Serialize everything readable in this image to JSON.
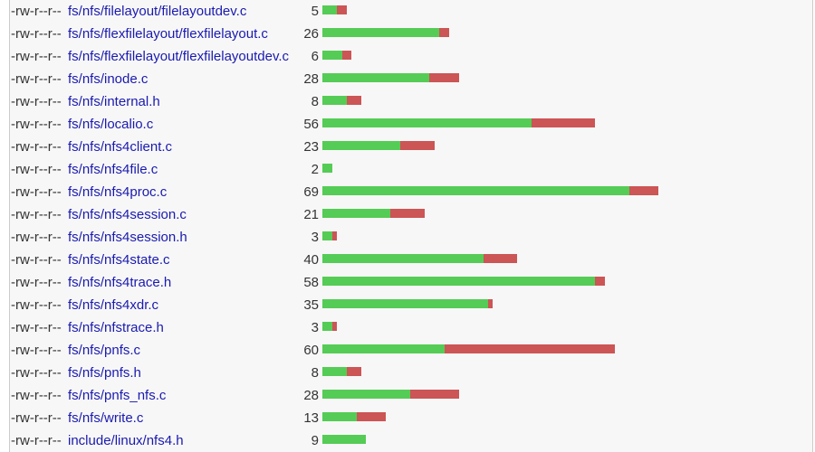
{
  "files": [
    {
      "mode": "-rw-r--r--",
      "name": "fs/nfs/filelayout/filelayoutdev.c",
      "changes": 5,
      "insertions": 3,
      "deletions": 2
    },
    {
      "mode": "-rw-r--r--",
      "name": "fs/nfs/flexfilelayout/flexfilelayout.c",
      "changes": 26,
      "insertions": 24,
      "deletions": 2
    },
    {
      "mode": "-rw-r--r--",
      "name": "fs/nfs/flexfilelayout/flexfilelayoutdev.c",
      "changes": 6,
      "insertions": 4,
      "deletions": 2
    },
    {
      "mode": "-rw-r--r--",
      "name": "fs/nfs/inode.c",
      "changes": 28,
      "insertions": 22,
      "deletions": 6
    },
    {
      "mode": "-rw-r--r--",
      "name": "fs/nfs/internal.h",
      "changes": 8,
      "insertions": 5,
      "deletions": 3
    },
    {
      "mode": "-rw-r--r--",
      "name": "fs/nfs/localio.c",
      "changes": 56,
      "insertions": 43,
      "deletions": 13
    },
    {
      "mode": "-rw-r--r--",
      "name": "fs/nfs/nfs4client.c",
      "changes": 23,
      "insertions": 16,
      "deletions": 7
    },
    {
      "mode": "-rw-r--r--",
      "name": "fs/nfs/nfs4file.c",
      "changes": 2,
      "insertions": 2,
      "deletions": 0
    },
    {
      "mode": "-rw-r--r--",
      "name": "fs/nfs/nfs4proc.c",
      "changes": 69,
      "insertions": 63,
      "deletions": 6
    },
    {
      "mode": "-rw-r--r--",
      "name": "fs/nfs/nfs4session.c",
      "changes": 21,
      "insertions": 14,
      "deletions": 7
    },
    {
      "mode": "-rw-r--r--",
      "name": "fs/nfs/nfs4session.h",
      "changes": 3,
      "insertions": 2,
      "deletions": 1
    },
    {
      "mode": "-rw-r--r--",
      "name": "fs/nfs/nfs4state.c",
      "changes": 40,
      "insertions": 33,
      "deletions": 7
    },
    {
      "mode": "-rw-r--r--",
      "name": "fs/nfs/nfs4trace.h",
      "changes": 58,
      "insertions": 56,
      "deletions": 2
    },
    {
      "mode": "-rw-r--r--",
      "name": "fs/nfs/nfs4xdr.c",
      "changes": 35,
      "insertions": 34,
      "deletions": 1
    },
    {
      "mode": "-rw-r--r--",
      "name": "fs/nfs/nfstrace.h",
      "changes": 3,
      "insertions": 2,
      "deletions": 1
    },
    {
      "mode": "-rw-r--r--",
      "name": "fs/nfs/pnfs.c",
      "changes": 60,
      "insertions": 25,
      "deletions": 35
    },
    {
      "mode": "-rw-r--r--",
      "name": "fs/nfs/pnfs.h",
      "changes": 8,
      "insertions": 5,
      "deletions": 3
    },
    {
      "mode": "-rw-r--r--",
      "name": "fs/nfs/pnfs_nfs.c",
      "changes": 28,
      "insertions": 18,
      "deletions": 10
    },
    {
      "mode": "-rw-r--r--",
      "name": "fs/nfs/write.c",
      "changes": 13,
      "insertions": 7,
      "deletions": 6
    },
    {
      "mode": "-rw-r--r--",
      "name": "include/linux/nfs4.h",
      "changes": 9,
      "insertions": 9,
      "deletions": 0
    }
  ]
}
